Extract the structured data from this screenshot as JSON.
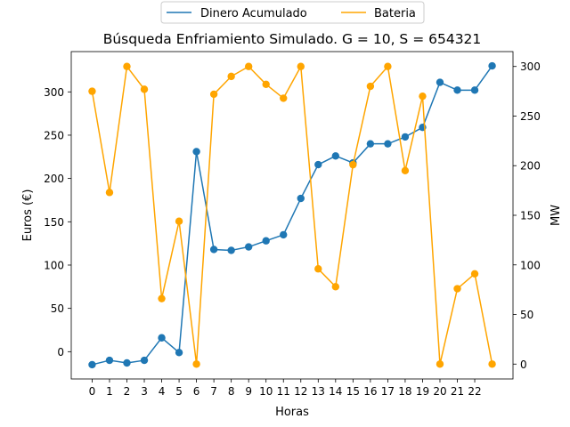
{
  "chart_data": {
    "type": "line",
    "title": "Búsqueda Enfriamiento Simulado. G = 10, S = 654321",
    "xlabel": "Horas",
    "ylabel": "Euros (€)",
    "y2label": "MW",
    "legend_placement": "top-center (outside plot)",
    "grid": false,
    "x": [
      0,
      1,
      2,
      3,
      4,
      5,
      6,
      7,
      8,
      9,
      10,
      11,
      12,
      13,
      14,
      15,
      16,
      17,
      18,
      19,
      20,
      21,
      22,
      23
    ],
    "x_ticks": [
      0,
      1,
      2,
      3,
      4,
      5,
      6,
      7,
      8,
      9,
      10,
      11,
      12,
      13,
      14,
      15,
      16,
      17,
      18,
      19,
      20,
      21,
      22
    ],
    "xlim": [
      -1.2,
      24.2
    ],
    "ylim": [
      -31.5,
      346.5
    ],
    "y_ticks": [
      0,
      50,
      100,
      150,
      200,
      250,
      300
    ],
    "y2lim": [
      -15,
      315
    ],
    "y2_ticks": [
      0,
      50,
      100,
      150,
      200,
      250,
      300
    ],
    "series": [
      {
        "name": "Dinero Acumulado",
        "axis": "left",
        "color": "#1f77b4",
        "values": [
          -15,
          -10,
          -13,
          -10,
          16,
          -1,
          231,
          118,
          117,
          121,
          128,
          135,
          177,
          216,
          226,
          218,
          240,
          240,
          248,
          259,
          311,
          302,
          302,
          330
        ]
      },
      {
        "name": "Bateria",
        "axis": "right",
        "color": "#ffa500",
        "values": [
          275,
          173,
          300,
          277,
          66,
          144,
          0,
          272,
          290,
          300,
          282,
          268,
          300,
          96,
          78,
          201,
          280,
          300,
          195,
          270,
          0,
          76,
          91,
          0
        ]
      }
    ]
  }
}
